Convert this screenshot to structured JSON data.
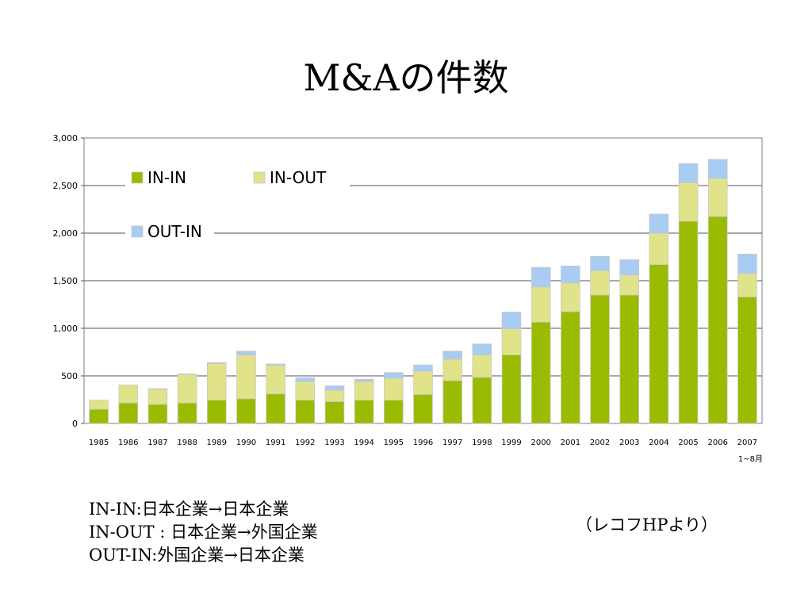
{
  "title": "M&Aの件数",
  "chart_data": {
    "type": "bar",
    "stacked": true,
    "categories": [
      "1985",
      "1986",
      "1987",
      "1988",
      "1989",
      "1990",
      "1991",
      "1992",
      "1993",
      "1994",
      "1995",
      "1996",
      "1997",
      "1998",
      "1999",
      "2000",
      "2001",
      "2002",
      "2003",
      "2004",
      "2005",
      "2006",
      "2007"
    ],
    "category_note": "1~8月",
    "series": [
      {
        "name": "IN-IN",
        "color": "#99bb00",
        "values": [
          150,
          215,
          200,
          215,
          245,
          260,
          310,
          245,
          230,
          245,
          245,
          305,
          450,
          485,
          720,
          1065,
          1175,
          1350,
          1350,
          1670,
          2125,
          2175,
          1330
        ]
      },
      {
        "name": "IN-OUT",
        "color": "#e1e38a",
        "values": [
          95,
          190,
          160,
          300,
          385,
          460,
          300,
          195,
          120,
          195,
          230,
          245,
          225,
          235,
          275,
          370,
          300,
          255,
          210,
          330,
          405,
          400,
          245
        ]
      },
      {
        "name": "OUT-IN",
        "color": "#a9ccf2",
        "values": [
          0,
          0,
          5,
          5,
          10,
          40,
          15,
          40,
          45,
          25,
          60,
          65,
          85,
          115,
          175,
          205,
          180,
          150,
          160,
          200,
          200,
          200,
          205
        ]
      }
    ],
    "ylim": [
      0,
      3000
    ],
    "yticks": [
      0,
      500,
      1000,
      1500,
      2000,
      2500,
      3000
    ],
    "ytick_labels": [
      "0",
      "500",
      "1,000",
      "1,500",
      "2,000",
      "2,500",
      "3,000"
    ],
    "grid": true,
    "legend_position": "top-left"
  },
  "notes": [
    "IN-IN:日本企業→日本企業",
    "IN-OUT : 日本企業→外国企業",
    "OUT-IN:外国企業→日本企業"
  ],
  "source": "（レコフHPより）"
}
